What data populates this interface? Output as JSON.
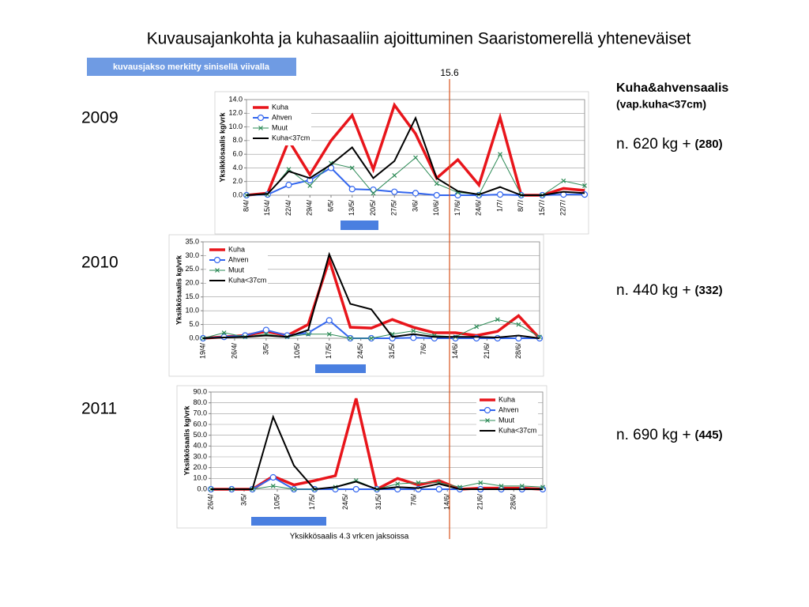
{
  "title": "Kuvausajankohta ja kuhasaaliin ajoittuminen Saaristomerellä yhteneväiset",
  "subtitle": "kuvausjakso merkitty sinisellä viivalla",
  "marker_label": "15.6",
  "catch_header": [
    "Kuha&ahvensaalis",
    "(vap.kuha<37cm)"
  ],
  "panels": [
    {
      "year": "2009",
      "catch": "n. 620 kg +",
      "catch_bold": "(280)"
    },
    {
      "year": "2010",
      "catch": "n. 440 kg +",
      "catch_bold": "(332)"
    },
    {
      "year": "2011",
      "catch": "n. 690 kg +",
      "catch_bold": "(445)"
    }
  ],
  "footnote": "Yksikkösaalis 4.3 vrk:en jaksoissa",
  "chart_data": [
    {
      "type": "line",
      "y_label": "Yksikkösaalis kg/vrk",
      "legend": "upper left",
      "grid": true,
      "x": [
        0,
        1,
        2,
        3,
        4,
        5,
        6,
        7,
        8,
        9,
        10,
        11,
        12,
        13,
        14,
        15,
        16
      ],
      "xlim": [
        0,
        16
      ],
      "xticks": [
        {
          "value": 0,
          "label": "8/4/"
        },
        {
          "value": 1,
          "label": "15/4/"
        },
        {
          "value": 2,
          "label": "22/4/"
        },
        {
          "value": 3,
          "label": "29/4/"
        },
        {
          "value": 4,
          "label": "6/5/"
        },
        {
          "value": 5,
          "label": "13/5/"
        },
        {
          "value": 6,
          "label": "20/5/"
        },
        {
          "value": 7,
          "label": "27/5/"
        },
        {
          "value": 8,
          "label": "3/6/"
        },
        {
          "value": 9,
          "label": "10/6/"
        },
        {
          "value": 10,
          "label": "17/6/"
        },
        {
          "value": 11,
          "label": "24/6/"
        },
        {
          "value": 12,
          "label": "1/7/"
        },
        {
          "value": 13,
          "label": "8/7/"
        },
        {
          "value": 14,
          "label": "15/7/"
        },
        {
          "value": 15,
          "label": "22/7/"
        }
      ],
      "ylim": [
        0,
        14
      ],
      "yticks": [
        {
          "value": 0,
          "label": "0.0"
        },
        {
          "value": 2,
          "label": "2.0"
        },
        {
          "value": 4,
          "label": "4.0"
        },
        {
          "value": 6,
          "label": "6.0"
        },
        {
          "value": 8,
          "label": "8.0"
        },
        {
          "value": 10,
          "label": "10.0"
        },
        {
          "value": 12,
          "label": "12.0"
        },
        {
          "value": 14,
          "label": "14.0"
        }
      ],
      "series": [
        {
          "name": "Kuha",
          "color": "#e8151b",
          "marker": "none",
          "width": 3.5,
          "values": [
            0,
            0.3,
            8,
            3,
            8,
            11.7,
            3.8,
            13.2,
            9,
            2.5,
            5.2,
            1.5,
            11.4,
            0,
            0,
            1,
            0.7
          ]
        },
        {
          "name": "Ahven",
          "color": "#3366ee",
          "marker": "circle",
          "width": 2,
          "values": [
            0,
            0.1,
            1.5,
            2.2,
            4,
            0.9,
            0.8,
            0.5,
            0.3,
            0,
            0,
            0,
            0.1,
            0,
            0,
            0.1,
            0.1
          ]
        },
        {
          "name": "Muut",
          "color": "#2e8b57",
          "marker": "x",
          "width": 1,
          "values": [
            0,
            0.1,
            3.8,
            1.4,
            4.7,
            4,
            0.3,
            2.9,
            5.5,
            1.7,
            0.4,
            0.1,
            6,
            0,
            0,
            2.1,
            1.4
          ]
        },
        {
          "name": "Kuha<37cm",
          "color": "#000000",
          "marker": "none",
          "width": 2,
          "values": [
            0,
            0.2,
            3.5,
            2.5,
            4.5,
            7,
            2.5,
            5,
            11.3,
            2.5,
            0.6,
            0.1,
            1.2,
            0,
            0,
            0.5,
            0.3
          ]
        }
      ]
    },
    {
      "type": "line",
      "y_label": "Yksikkösaalis kg/vrk",
      "legend": "upper left",
      "grid": true,
      "x": [
        0,
        1,
        2,
        3,
        4,
        5,
        6,
        7,
        8,
        9,
        10,
        11,
        12,
        13,
        14,
        15,
        16
      ],
      "xlim": [
        0,
        16
      ],
      "xticks": [
        {
          "value": 0,
          "label": "19/4/"
        },
        {
          "value": 1.5,
          "label": "26/4/"
        },
        {
          "value": 3,
          "label": "3/5/"
        },
        {
          "value": 4.5,
          "label": "10/5/"
        },
        {
          "value": 6,
          "label": "17/5/"
        },
        {
          "value": 7.5,
          "label": "24/5/"
        },
        {
          "value": 9,
          "label": "31/5/"
        },
        {
          "value": 10.5,
          "label": "7/6/"
        },
        {
          "value": 12,
          "label": "14/6/"
        },
        {
          "value": 13.5,
          "label": "21/6/"
        },
        {
          "value": 15,
          "label": "28/6/"
        }
      ],
      "ylim": [
        0,
        35
      ],
      "yticks": [
        {
          "value": 0,
          "label": "0.0"
        },
        {
          "value": 5,
          "label": "5.0"
        },
        {
          "value": 10,
          "label": "10.0"
        },
        {
          "value": 15,
          "label": "15.0"
        },
        {
          "value": 20,
          "label": "20.0"
        },
        {
          "value": 25,
          "label": "25.0"
        },
        {
          "value": 30,
          "label": "30.0"
        },
        {
          "value": 35,
          "label": "35.0"
        }
      ],
      "series": [
        {
          "name": "Kuha",
          "color": "#e8151b",
          "marker": "none",
          "width": 3.5,
          "values": [
            0,
            0.5,
            1,
            2.5,
            1,
            5,
            28.5,
            4,
            3.7,
            6.8,
            4,
            2,
            2,
            1,
            2.5,
            8.2,
            0
          ]
        },
        {
          "name": "Ahven",
          "color": "#3366ee",
          "marker": "circle",
          "width": 2,
          "values": [
            0,
            0.5,
            1,
            3,
            1,
            2,
            6.5,
            0,
            0,
            0,
            0.2,
            0,
            0,
            0,
            0,
            0,
            0
          ]
        },
        {
          "name": "Muut",
          "color": "#2e8b57",
          "marker": "x",
          "width": 1,
          "values": [
            0,
            2,
            0.5,
            1.5,
            0.5,
            1.5,
            1.5,
            0,
            0,
            1.5,
            2.7,
            1,
            0.5,
            4.2,
            6.8,
            5,
            0.5
          ]
        },
        {
          "name": "Kuha<37cm",
          "color": "#000000",
          "marker": "none",
          "width": 2,
          "values": [
            0,
            0.3,
            0.5,
            1,
            0.5,
            3,
            30.5,
            12.5,
            10.5,
            0.5,
            1.5,
            0.5,
            0.5,
            0.5,
            0.3,
            1,
            0
          ]
        }
      ]
    },
    {
      "type": "line",
      "y_label": "Yksikkösaalis kg/vrk",
      "legend": "upper right",
      "grid": true,
      "x": [
        0,
        1,
        2,
        3,
        4,
        5,
        6,
        7,
        8,
        9,
        10,
        11,
        12,
        13,
        14,
        15,
        16
      ],
      "xlim": [
        0,
        16
      ],
      "xticks": [
        {
          "value": 0,
          "label": "26/4/"
        },
        {
          "value": 1.6,
          "label": "3/5/"
        },
        {
          "value": 3.2,
          "label": "10/5/"
        },
        {
          "value": 4.9,
          "label": "17/5/"
        },
        {
          "value": 6.5,
          "label": "24/5/"
        },
        {
          "value": 8.1,
          "label": "31/5/"
        },
        {
          "value": 9.8,
          "label": "7/6/"
        },
        {
          "value": 11.4,
          "label": "14/6/"
        },
        {
          "value": 13,
          "label": "21/6/"
        },
        {
          "value": 14.6,
          "label": "28/6/"
        }
      ],
      "ylim": [
        0,
        90
      ],
      "yticks": [
        {
          "value": 0,
          "label": "0.0"
        },
        {
          "value": 10,
          "label": "10.0"
        },
        {
          "value": 20,
          "label": "20.0"
        },
        {
          "value": 30,
          "label": "30.0"
        },
        {
          "value": 40,
          "label": "40.0"
        },
        {
          "value": 50,
          "label": "50.0"
        },
        {
          "value": 60,
          "label": "60.0"
        },
        {
          "value": 70,
          "label": "70.0"
        },
        {
          "value": 80,
          "label": "80.0"
        },
        {
          "value": 90,
          "label": "90.0"
        }
      ],
      "series": [
        {
          "name": "Kuha",
          "color": "#e8151b",
          "marker": "none",
          "width": 3.5,
          "values": [
            0,
            0,
            0,
            12,
            4,
            8,
            12.5,
            84,
            0,
            10,
            4,
            8,
            0,
            1,
            1,
            1,
            0
          ]
        },
        {
          "name": "Ahven",
          "color": "#3366ee",
          "marker": "circle",
          "width": 2,
          "values": [
            0,
            0,
            0,
            11,
            0,
            0,
            0,
            0,
            0,
            0,
            0,
            0,
            0,
            0,
            0,
            0,
            0
          ]
        },
        {
          "name": "Muut",
          "color": "#2e8b57",
          "marker": "x",
          "width": 1,
          "values": [
            0,
            0,
            0,
            3,
            0,
            0,
            2,
            8,
            0,
            5,
            6,
            6,
            2,
            6,
            3,
            3,
            2
          ]
        },
        {
          "name": "Kuha<37cm",
          "color": "#000000",
          "marker": "none",
          "width": 2,
          "values": [
            0,
            0,
            0,
            67,
            22,
            0,
            2,
            7,
            0,
            2,
            1,
            5,
            0,
            0,
            0,
            0,
            0
          ]
        }
      ]
    }
  ]
}
